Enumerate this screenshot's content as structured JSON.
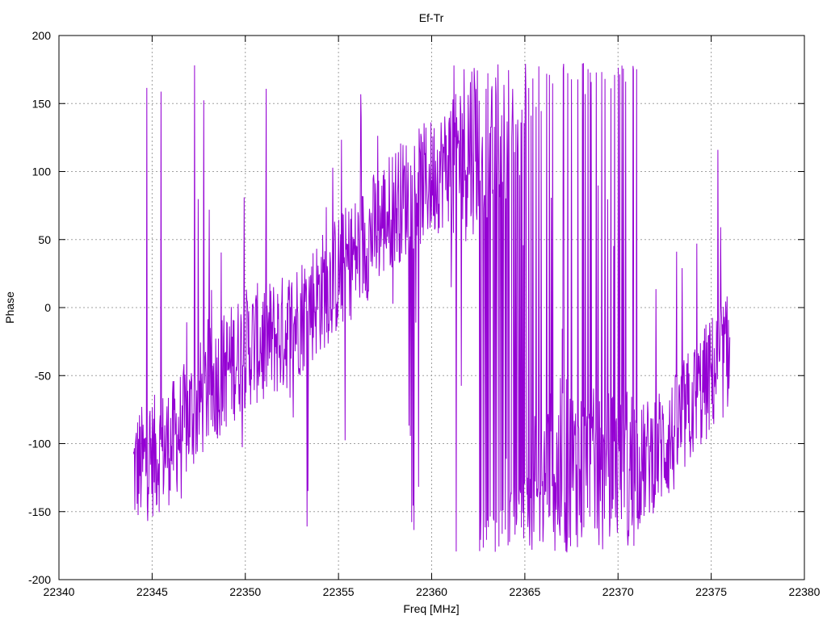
{
  "chart_data": {
    "type": "line",
    "title": "Ef-Tr",
    "xlabel": "Freq [MHz]",
    "ylabel": "Phase",
    "xlim": [
      22340,
      22380
    ],
    "ylim": [
      -200,
      200
    ],
    "xticks": [
      22340,
      22345,
      22350,
      22355,
      22360,
      22365,
      22370,
      22375,
      22380
    ],
    "yticks": [
      -200,
      -150,
      -100,
      -50,
      0,
      50,
      100,
      150,
      200
    ],
    "grid": true,
    "legend": "none",
    "series": [
      {
        "color": "#9400d3",
        "x_range": [
          22344,
          22376
        ],
        "phase_trend": {
          "x": [
            22344,
            22346,
            22348,
            22350,
            22352,
            22354,
            22356,
            22358,
            22360,
            22362,
            22363,
            22364,
            22364.5,
            22365,
            22366,
            22367,
            22368,
            22369,
            22370,
            22371,
            22372,
            22373,
            22374,
            22375,
            22376
          ],
          "y": [
            -120,
            -100,
            -60,
            -30,
            -20,
            10,
            40,
            75,
            95,
            120,
            135,
            150,
            165,
            -160,
            -135,
            -120,
            -125,
            -130,
            -130,
            -120,
            -105,
            -95,
            -70,
            -50,
            -30
          ]
        }
      }
    ]
  }
}
